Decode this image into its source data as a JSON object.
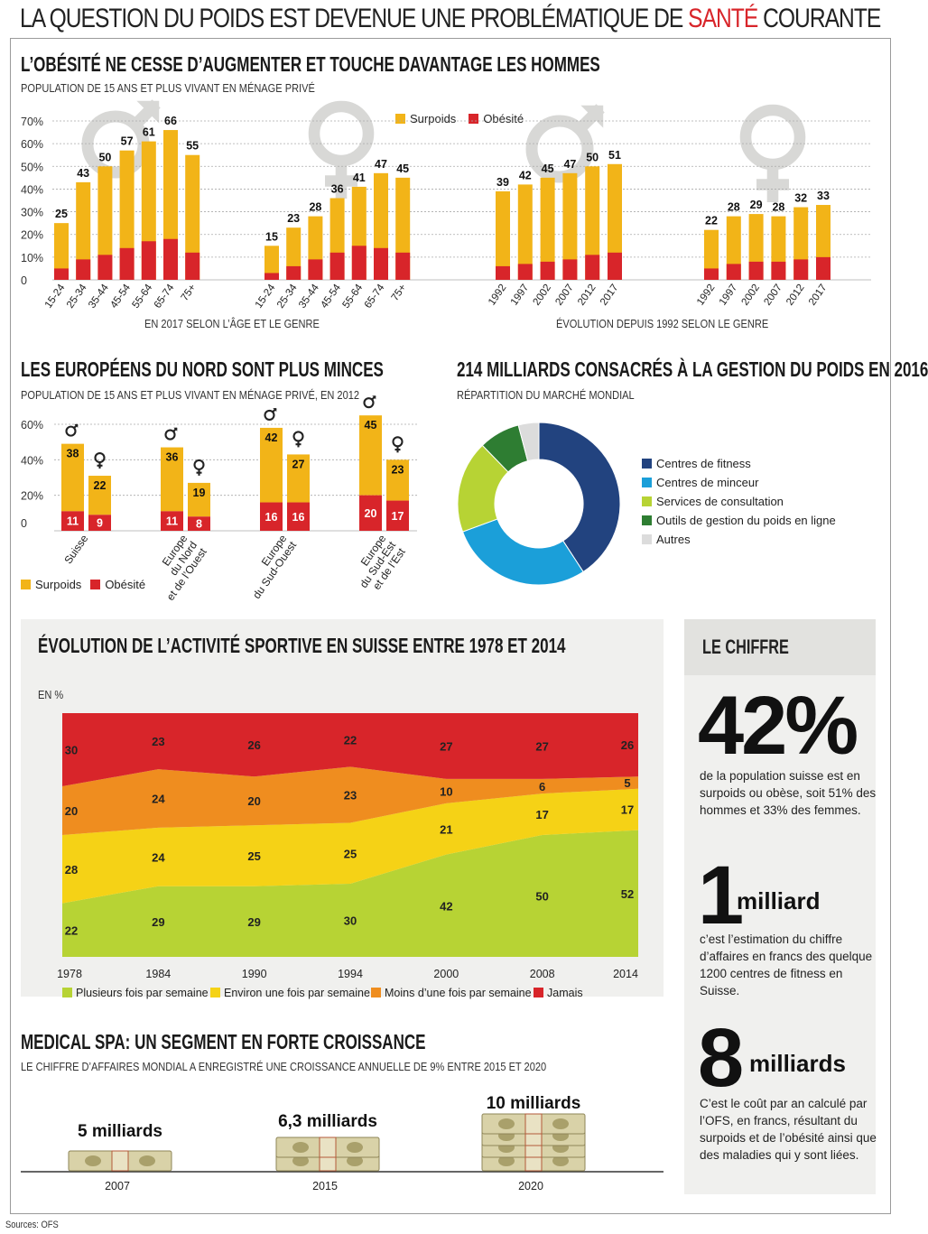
{
  "main_title": {
    "part1": "LA QUESTION DU POIDS EST DEVENUE UNE PROBLÉMATIQUE DE ",
    "accent": "SANTÉ",
    "part2": " COURANTE"
  },
  "section1": {
    "title": "L’OBÉSITÉ NE CESSE D’AUGMENTER ET TOUCHE DAVANTAGE LES HOMMES",
    "subtitle": "POPULATION DE 15 ANS ET PLUS VIVANT EN MÉNAGE PRIVÉ",
    "legend": {
      "surpoids": "Surpoids",
      "obesite": "Obésité"
    },
    "caption_left": "EN 2017 SELON L’ÂGE ET LE GENRE",
    "caption_right": "ÉVOLUTION DEPUIS 1992 SELON LE GENRE"
  },
  "section2": {
    "title": "LES EUROPÉENS DU NORD SONT PLUS MINCES",
    "subtitle": "POPULATION DE 15 ANS ET PLUS VIVANT EN MÉNAGE PRIVÉ, EN 2012",
    "legend": {
      "surpoids": "Surpoids",
      "obesite": "Obésité"
    }
  },
  "section3": {
    "title": "214 MILLIARDS CONSACRÉS À LA GESTION DU POIDS EN 2016",
    "subtitle": "RÉPARTITION DU MARCHÉ MONDIAL"
  },
  "section4": {
    "title": "ÉVOLUTION DE L’ACTIVITÉ SPORTIVE EN SUISSE ENTRE 1978 ET 2014",
    "unit": "EN %"
  },
  "section5": {
    "title": "MEDICAL SPA: UN SEGMENT EN FORTE CROISSANCE",
    "subtitle": "LE CHIFFRE D’AFFAIRES MONDIAL A ENREGISTRÉ UNE CROISSANCE ANNUELLE DE 9% ENTRE 2015 ET 2020",
    "items": [
      {
        "value": "5 milliards",
        "year": "2007"
      },
      {
        "value": "6,3 milliards",
        "year": "2015"
      },
      {
        "value": "10 milliards",
        "year": "2020"
      }
    ]
  },
  "le_chiffre": {
    "title": "LE CHIFFRE",
    "big1": "42%",
    "text1": "de la population suisse est en surpoids ou obèse, soit 51% des hommes et 33% des femmes.",
    "big2": "1",
    "big2_suffix": "milliard",
    "text2": "c’est l’estimation du chiffre d’affaires en francs des quelque 1200 centres de fitness en Suisse.",
    "big3": "8",
    "big3_suffix": "milliards",
    "text3": "C’est le coût par an calculé par l’OFS, en francs, résultant du surpoids et de l’obésité ainsi que des maladies qui y sont liées."
  },
  "sources": "Sources: OFS",
  "colors": {
    "surpoids": "#f2b418",
    "obesite": "#d8252a",
    "grid": "#aaaaaa",
    "symbol": "#d8d8d6"
  },
  "chart_data": [
    {
      "id": "age_2017",
      "type": "bar",
      "yticks": [
        "0",
        "10%",
        "20%",
        "30%",
        "40%",
        "50%",
        "60%",
        "70%"
      ],
      "ylim": [
        0,
        70
      ],
      "groups": [
        {
          "symbol": "male",
          "categories": [
            "15-24",
            "25-34",
            "35-44",
            "45-54",
            "55-64",
            "65-74",
            "75+"
          ],
          "surpoids": [
            25,
            43,
            50,
            57,
            61,
            66,
            55
          ],
          "obesite": [
            5,
            9,
            11,
            14,
            17,
            18,
            12
          ]
        },
        {
          "symbol": "female",
          "categories": [
            "15-24",
            "25-34",
            "35-44",
            "45-54",
            "55-64",
            "65-74",
            "75+"
          ],
          "surpoids": [
            15,
            23,
            28,
            36,
            41,
            47,
            45
          ],
          "obesite": [
            3,
            6,
            9,
            12,
            15,
            14,
            12
          ]
        }
      ]
    },
    {
      "id": "evolution_1992",
      "type": "bar",
      "ylim": [
        0,
        70
      ],
      "groups": [
        {
          "symbol": "male",
          "categories": [
            "1992",
            "1997",
            "2002",
            "2007",
            "2012",
            "2017"
          ],
          "surpoids": [
            39,
            42,
            45,
            47,
            50,
            51
          ],
          "obesite": [
            6,
            7,
            8,
            9,
            11,
            12
          ]
        },
        {
          "symbol": "female",
          "categories": [
            "1992",
            "1997",
            "2002",
            "2007",
            "2012",
            "2017"
          ],
          "surpoids": [
            22,
            28,
            29,
            28,
            32,
            33
          ],
          "obesite": [
            5,
            7,
            8,
            8,
            9,
            10
          ]
        }
      ]
    },
    {
      "id": "europe_2012",
      "type": "bar",
      "yticks": [
        "0",
        "20%",
        "40%",
        "60%"
      ],
      "ylim": [
        0,
        60
      ],
      "regions": [
        {
          "label": [
            "Suisse"
          ],
          "male": {
            "surpoids": 38,
            "obesite": 11
          },
          "female": {
            "surpoids": 22,
            "obesite": 9
          }
        },
        {
          "label": [
            "Europe",
            "du Nord",
            "et de l’Ouest"
          ],
          "male": {
            "surpoids": 36,
            "obesite": 11
          },
          "female": {
            "surpoids": 19,
            "obesite": 8
          }
        },
        {
          "label": [
            "Europe",
            "du Sud-Ouest"
          ],
          "male": {
            "surpoids": 42,
            "obesite": 16
          },
          "female": {
            "surpoids": 27,
            "obesite": 16
          }
        },
        {
          "label": [
            "Europe",
            "du Sud-Est",
            "et de l’Est"
          ],
          "male": {
            "surpoids": 45,
            "obesite": 20
          },
          "female": {
            "surpoids": 23,
            "obesite": 17
          }
        }
      ]
    },
    {
      "id": "market_2016",
      "type": "pie",
      "donut": true,
      "slices": [
        {
          "label": "Centres de fitness",
          "value": 40,
          "color": "#22437f"
        },
        {
          "label": "Centres de minceur",
          "value": 28,
          "color": "#1b9fd9"
        },
        {
          "label": "Services de consultation",
          "value": 18,
          "color": "#b7d334"
        },
        {
          "label": "Outils de gestion du poids en ligne",
          "value": 8,
          "color": "#2e7d32"
        },
        {
          "label": "Autres",
          "value": 4,
          "color": "#dcdcdc"
        }
      ]
    },
    {
      "id": "sport_activity",
      "type": "area",
      "x": [
        "1978",
        "1984",
        "1990",
        "1994",
        "2000",
        "2008",
        "2014"
      ],
      "series": [
        {
          "name": "Plusieurs fois par semaine",
          "values": [
            22,
            29,
            29,
            30,
            42,
            50,
            52
          ],
          "color": "#b7d334"
        },
        {
          "name": "Environ une fois par semaine",
          "values": [
            28,
            24,
            25,
            25,
            21,
            17,
            17
          ],
          "color": "#f5d216"
        },
        {
          "name": "Moins d’une fois par semaine",
          "values": [
            20,
            24,
            20,
            23,
            10,
            6,
            5
          ],
          "color": "#ef8d1f"
        },
        {
          "name": "Jamais",
          "values": [
            30,
            23,
            26,
            22,
            27,
            27,
            26
          ],
          "color": "#d8252a"
        }
      ]
    }
  ]
}
